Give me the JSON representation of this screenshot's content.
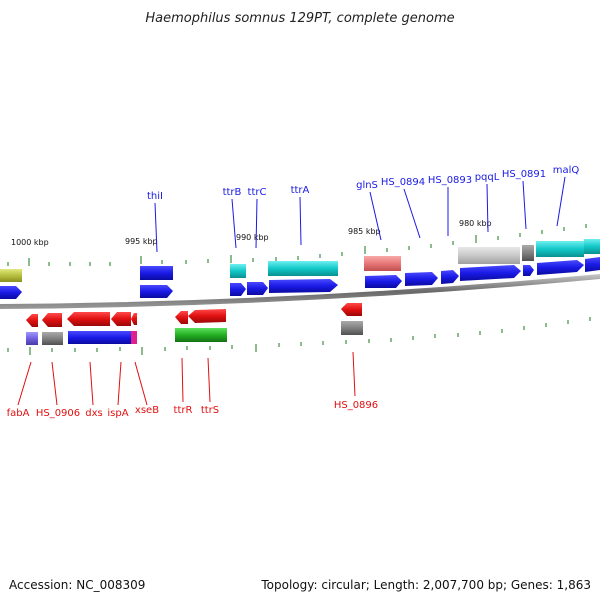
{
  "title": "Haemophilus somnus 129PT, complete genome",
  "accession": "Accession: NC_008309",
  "summary": "Topology: circular; Length: 2,007,700 bp; Genes: 1,863",
  "colors": {
    "blue": "#1a1ae6",
    "red": "#e01010",
    "cyan": "#12c8c8",
    "gray": "#808080",
    "light_gray": "#c8c8c8",
    "green": "#22b022",
    "pink": "#e87878",
    "purple": "#7060e0",
    "magenta": "#e02090",
    "olive": "#b8c040",
    "tick": "#1a7a1a",
    "backbone": "#808080"
  },
  "kbp_labels": [
    "1000 kbp",
    "995 kbp",
    "990 kbp",
    "985 kbp",
    "980 kbp"
  ],
  "top_genes": [
    "thiI",
    "ttrB",
    "ttrC",
    "ttrA",
    "glnS",
    "HS_0894",
    "HS_0893",
    "pqqL",
    "HS_0891",
    "malQ"
  ],
  "bottom_genes": [
    "fabA",
    "HS_0906",
    "dxs",
    "ispA",
    "xseB",
    "ttrR",
    "ttrS",
    "HS_0896"
  ]
}
